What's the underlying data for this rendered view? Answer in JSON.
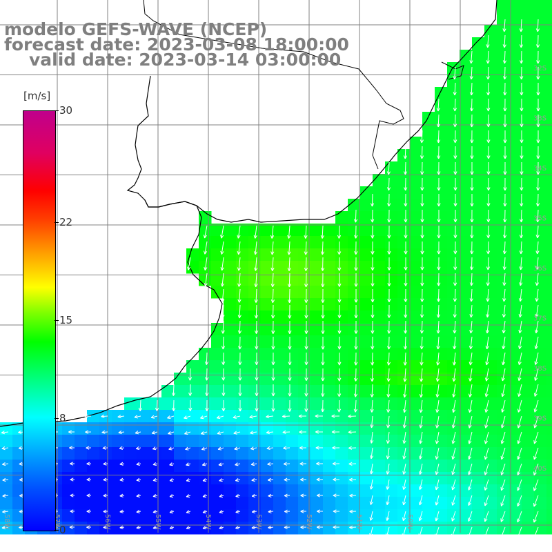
{
  "title": {
    "line1": "modelo GEFS-WAVE (NCEP)",
    "line2": "forecast date: 2023-03-08 18:00:00",
    "line3": "valid date: 2023-03-14 03:00:00"
  },
  "colorbar": {
    "unit": "[m/s]",
    "ticks": [
      {
        "label": "30",
        "value": 30
      },
      {
        "label": "22",
        "value": 22
      },
      {
        "label": "15",
        "value": 15
      },
      {
        "label": "8",
        "value": 8
      },
      {
        "label": "0",
        "value": 0
      }
    ],
    "range": [
      0,
      30
    ]
  },
  "map": {
    "variable": "wind speed",
    "field_description": "southward/south-westward winds over the ocean, strongest (yellow-green) off the coast, weakest (blue) in the south-west",
    "latitude_labels": [
      "32S",
      "33S",
      "34S",
      "35S",
      "36S",
      "37S",
      "38S",
      "39S",
      "40S"
    ],
    "longitude_labels": [
      "58W",
      "57W",
      "56W",
      "55W",
      "54W",
      "53W",
      "52W",
      "51W",
      "50W"
    ],
    "colors": {
      "land": "#ffffff",
      "grid": "#808080",
      "coast": "#000000",
      "arrow": "#ffffff",
      "title": "#7f7f7f"
    }
  }
}
